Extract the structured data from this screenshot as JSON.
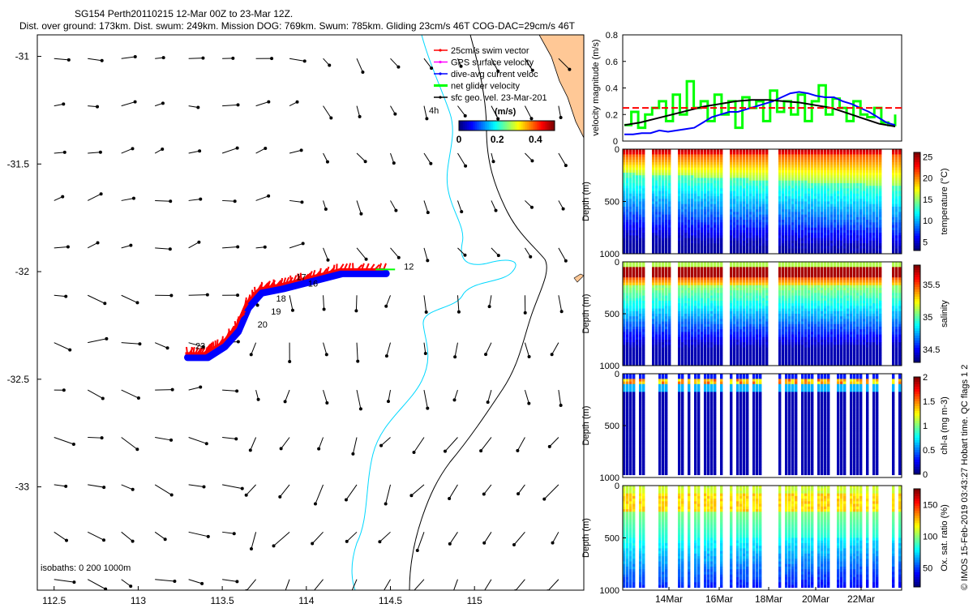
{
  "title": {
    "line1": "SG154 Perth20110215 12-Mar 00Z to 23-Mar 12Z.",
    "line2": "Dist. over ground: 173km. Dist. swum: 249km. Mission DOG: 769km. Swum: 785km. Gliding 23cm/s 46T COG-DAC=29cm/s 46T"
  },
  "vertical_text": "© IMOS 15-Feb-2019 03:43:27 Hobart time. QC flags 1  2",
  "colors": {
    "swim": "#ff0000",
    "gps": "#ff00ff",
    "dac": "#0000ff",
    "net": "#00ff00",
    "sfc": "#000000",
    "coast": "#00d8ff",
    "land": "#ffc896",
    "threshold": "#ff0000"
  },
  "chart_data": [
    {
      "type": "scatter",
      "name": "map",
      "x_ticks": [
        "112.5",
        "113",
        "113.5",
        "114",
        "114.5",
        "115"
      ],
      "x_tick_values": [
        112.5,
        113,
        113.5,
        114,
        114.5,
        115
      ],
      "y_ticks": [
        "-31",
        "-31.5",
        "-32",
        "-32.5",
        "-33"
      ],
      "y_tick_values": [
        -31,
        -31.5,
        -32,
        -32.5,
        -33
      ],
      "xlim": [
        112.4,
        115.65
      ],
      "ylim": [
        -33.48,
        -30.9
      ],
      "legend": {
        "entries": [
          "25cm/s swim vector",
          "GPS surface velocity",
          "dive-avg current veloc",
          "net glider velocity",
          "sfc geo. vel. 23-Mar-201"
        ],
        "placement": "top-right",
        "colorbar_title": "(m/s)",
        "colorbar_ticks": [
          "0",
          "0.2",
          "0.4"
        ],
        "colorbar_range": [
          0,
          0.5
        ],
        "time_label": "4h"
      },
      "day_labels": [
        {
          "text": "12",
          "lon": 114.58,
          "lat": -31.99
        },
        {
          "text": "16",
          "lon": 114.01,
          "lat": -32.07
        },
        {
          "text": "17",
          "lon": 113.94,
          "lat": -32.04
        },
        {
          "text": "18",
          "lon": 113.82,
          "lat": -32.14
        },
        {
          "text": "19",
          "lon": 113.79,
          "lat": -32.2
        },
        {
          "text": "20",
          "lon": 113.71,
          "lat": -32.26
        },
        {
          "text": "23",
          "lon": 113.34,
          "lat": -32.36
        }
      ],
      "isobath_label": "isobaths: 0   200   1000m",
      "track": [
        [
          114.46,
          -31.99
        ],
        [
          114.2,
          -31.99
        ],
        [
          114.0,
          -32.03
        ],
        [
          113.85,
          -32.06
        ],
        [
          113.72,
          -32.08
        ],
        [
          113.64,
          -32.15
        ],
        [
          113.58,
          -32.26
        ],
        [
          113.5,
          -32.33
        ],
        [
          113.4,
          -32.38
        ],
        [
          113.28,
          -32.38
        ]
      ]
    },
    {
      "type": "line",
      "name": "velocity magnitude",
      "ylabel": "velocity magnitude (m/s)",
      "y_ticks": [
        "0",
        "0.2",
        "0.4",
        "0.6",
        "0.8"
      ],
      "ylim": [
        0,
        0.8
      ],
      "threshold": 0.25,
      "series": [
        {
          "color": "#00ff00",
          "values": [
            0.12,
            0.22,
            0.1,
            0.2,
            0.25,
            0.3,
            0.15,
            0.35,
            0.2,
            0.45,
            0.25,
            0.3,
            0.15,
            0.35,
            0.2,
            0.3,
            0.1,
            0.33,
            0.25,
            0.3,
            0.15,
            0.38,
            0.22,
            0.3,
            0.2,
            0.35,
            0.15,
            0.3,
            0.42,
            0.2,
            0.32,
            0.25,
            0.15,
            0.3,
            0.2,
            0.18,
            0.25,
            0.14,
            0.12,
            0.2
          ]
        },
        {
          "color": "#0000ff",
          "values": [
            0.05,
            0.05,
            0.06,
            0.06,
            0.08,
            0.07,
            0.08,
            0.09,
            0.1,
            0.14,
            0.18,
            0.2,
            0.22,
            0.22,
            0.24,
            0.26,
            0.28,
            0.3,
            0.33,
            0.36,
            0.37,
            0.36,
            0.34,
            0.33,
            0.33,
            0.3,
            0.28,
            0.25,
            0.22,
            0.18,
            0.14,
            0.12
          ]
        },
        {
          "color": "#000000",
          "values": [
            0.12,
            0.14,
            0.17,
            0.2,
            0.23,
            0.26,
            0.28,
            0.3,
            0.31,
            0.31,
            0.3,
            0.29,
            0.27,
            0.25,
            0.21,
            0.17,
            0.13,
            0.11
          ]
        }
      ]
    },
    {
      "type": "heatmap",
      "name": "temperature",
      "ylabel": "Depth (m)",
      "y_ticks": [
        "0",
        "500",
        "1000"
      ],
      "ylim": [
        1000,
        0
      ],
      "colorbar_label": "temperature (°C)",
      "colorbar_ticks": [
        "25",
        "20",
        "15",
        "10",
        "5"
      ],
      "colorbar_range": [
        3,
        26
      ]
    },
    {
      "type": "heatmap",
      "name": "salinity",
      "ylabel": "Depth (m)",
      "y_ticks": [
        "0",
        "500",
        "1000"
      ],
      "ylim": [
        1000,
        0
      ],
      "colorbar_label": "salinity",
      "colorbar_ticks": [
        "35.5",
        "35",
        "34.5"
      ],
      "colorbar_range": [
        34.3,
        35.8
      ]
    },
    {
      "type": "heatmap",
      "name": "chl-a",
      "ylabel": "Depth (m)",
      "y_ticks": [
        "0",
        "500",
        "1000"
      ],
      "ylim": [
        1000,
        0
      ],
      "colorbar_label": "chl-a (mg m-3)",
      "colorbar_ticks": [
        "2",
        "1.5",
        "1",
        "0.5",
        "0"
      ],
      "colorbar_range": [
        0,
        2
      ]
    },
    {
      "type": "heatmap",
      "name": "oxygen",
      "ylabel": "Depth (m)",
      "y_ticks": [
        "0",
        "500",
        "1000"
      ],
      "ylim": [
        1000,
        0
      ],
      "x_ticks": [
        "14Mar",
        "16Mar",
        "18Mar",
        "20Mar",
        "22Mar"
      ],
      "colorbar_label": "Ox. sat. ratio (%)",
      "colorbar_ticks": [
        "150",
        "100",
        "50"
      ],
      "colorbar_range": [
        20,
        175
      ]
    }
  ]
}
